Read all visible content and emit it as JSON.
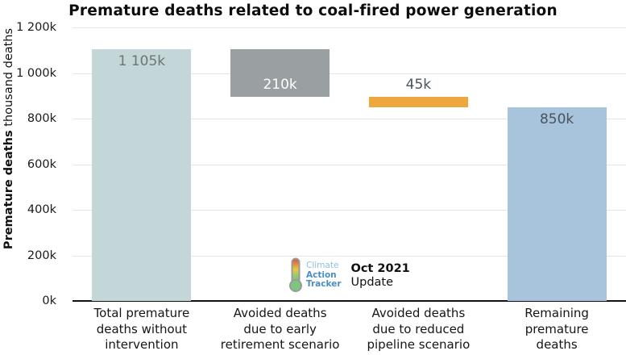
{
  "title": "Premature deaths related to coal-fired power generation",
  "y_axis": {
    "label_bold": "Premature deaths",
    "label_regular": " thousand deaths",
    "ticks": [
      {
        "label": "1 200k",
        "value": 1200
      },
      {
        "label": "1 000k",
        "value": 1000
      },
      {
        "label": "800k",
        "value": 800
      },
      {
        "label": "600k",
        "value": 600
      },
      {
        "label": "400k",
        "value": 400
      },
      {
        "label": "200k",
        "value": 200
      },
      {
        "label": "0k",
        "value": 0
      }
    ]
  },
  "chart_data": {
    "type": "bar",
    "subtype": "waterfall",
    "title": "Premature deaths related to coal-fired power generation",
    "ylabel": "Premature deaths (thousand deaths)",
    "ylim": [
      0,
      1200
    ],
    "unit": "thousand deaths (k)",
    "grid": true,
    "legend": "none",
    "categories": [
      "Total premature deaths without intervention",
      "Avoided deaths due to early retirement scenario",
      "Avoided deaths due to reduced pipeline scenario",
      "Remaining premature deaths"
    ],
    "series": [
      {
        "category": "Total premature deaths without intervention",
        "start": 0,
        "end": 1105,
        "value": 1105,
        "label": "1 105k",
        "color": "#c3d6d8",
        "label_color": "#6f7577",
        "label_position": "inside-top",
        "label_lines": [
          "Total premature",
          "deaths without",
          "intervention"
        ]
      },
      {
        "category": "Avoided deaths due to early retirement scenario",
        "start": 895,
        "end": 1105,
        "value": 210,
        "label": "210k",
        "color": "#9aa0a2",
        "label_color": "#ffffff",
        "label_position": "inside-bottom",
        "label_lines": [
          "Avoided deaths",
          "due to early",
          "retirement scenario"
        ]
      },
      {
        "category": "Avoided deaths due to reduced pipeline scenario",
        "start": 850,
        "end": 895,
        "value": 45,
        "label": "45k",
        "color": "#eea63e",
        "label_color": "#4b545e",
        "label_position": "above",
        "label_lines": [
          "Avoided deaths",
          "due to reduced",
          "pipeline scenario"
        ]
      },
      {
        "category": "Remaining premature deaths",
        "start": 0,
        "end": 850,
        "value": 850,
        "label": "850k",
        "color": "#a7c4dc",
        "label_color": "#4b545e",
        "label_position": "inside-top",
        "label_lines": [
          "Remaining",
          "premature",
          "deaths"
        ]
      }
    ]
  },
  "branding": {
    "logo": {
      "icon": "thermometer-icon",
      "line1": "Climate",
      "line2": "Action",
      "line3": "Tracker"
    },
    "note_bold": "Oct 2021",
    "note_regular": "Update"
  }
}
